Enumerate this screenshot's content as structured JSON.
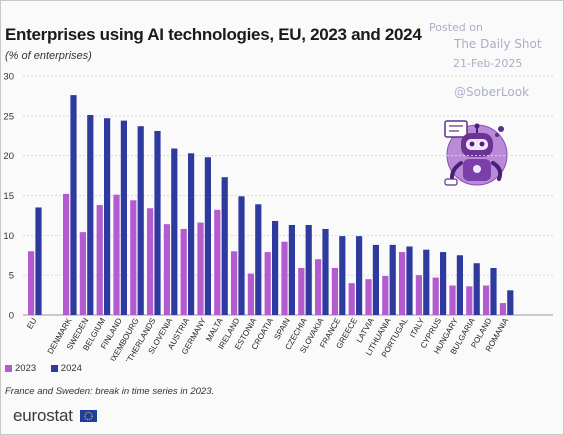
{
  "title": "Enterprises using AI technologies, EU, 2023 and 2024",
  "subtitle": "(% of enterprises)",
  "watermark": {
    "posted": "Posted on",
    "source": "The Daily Shot",
    "date": "21-Feb-2025",
    "handle": "@SoberLook"
  },
  "footnote": "France and Sweden: break in time series in 2023.",
  "logo_text": "eurostat",
  "icons": {
    "illustration": "robot-illustration",
    "flag": "eu-flag-icon"
  },
  "colors": {
    "y2023": "#b55bd0",
    "y2024": "#2e3a9e",
    "grid": "#d8d8d8",
    "text": "#1a1a1a"
  },
  "chart_data": {
    "type": "bar",
    "categories": [
      "EU",
      "DENMARK",
      "SWEDEN",
      "BELGIUM",
      "FINLAND",
      "LUXEMBOURG",
      "NETHERLANDS",
      "SLOVENIA",
      "AUSTRIA",
      "GERMANY",
      "MALTA",
      "IRELAND",
      "ESTONIA",
      "CROATIA",
      "SPAIN",
      "CZECHIA",
      "SLOVAKIA",
      "FRANCE",
      "GREECE",
      "LATVIA",
      "LITHUANIA",
      "PORTUGAL",
      "ITALY",
      "CYPRUS",
      "HUNGARY",
      "BULGARIA",
      "POLAND",
      "ROMANIA"
    ],
    "series": [
      {
        "name": "2023",
        "values": [
          8.0,
          15.2,
          10.4,
          13.8,
          15.1,
          14.4,
          13.4,
          11.4,
          10.8,
          11.6,
          13.2,
          8.0,
          5.2,
          7.9,
          9.2,
          5.9,
          7.0,
          5.9,
          4.0,
          4.5,
          4.9,
          7.9,
          5.0,
          4.7,
          3.7,
          3.6,
          3.7,
          1.5
        ]
      },
      {
        "name": "2024",
        "values": [
          13.5,
          27.6,
          25.1,
          24.7,
          24.4,
          23.7,
          23.1,
          20.9,
          20.3,
          19.8,
          17.3,
          14.9,
          13.9,
          11.8,
          11.3,
          11.3,
          10.8,
          9.9,
          9.9,
          8.8,
          8.8,
          8.6,
          8.2,
          7.9,
          7.5,
          6.5,
          5.9,
          3.1
        ]
      }
    ],
    "y_ticks": [
      "0",
      "5",
      "10",
      "15",
      "20",
      "25",
      "30"
    ],
    "ylim": [
      0,
      30
    ],
    "grid": true,
    "legend_position": "bottom-left"
  }
}
